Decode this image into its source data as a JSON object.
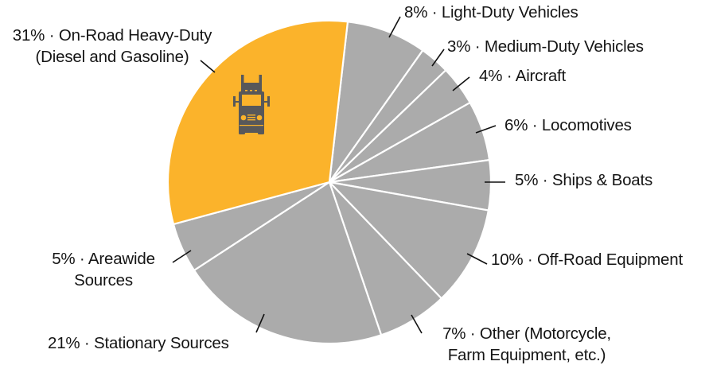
{
  "chart_data": {
    "type": "pie",
    "title": "",
    "start_angle_deg": 6.5,
    "direction": "clockwise",
    "highlight_color": "#FBB32B",
    "default_color": "#ABABAB",
    "separator_color": "#FFFFFF",
    "icon": "truck-icon",
    "icon_color": "#58585A",
    "slices": [
      {
        "label": "Light-Duty Vehicles",
        "value": 8,
        "color": "#ABABAB",
        "display": "8% · Light-Duty Vehicles"
      },
      {
        "label": "Medium-Duty Vehicles",
        "value": 3,
        "color": "#ABABAB",
        "display": "3% · Medium-Duty Vehicles"
      },
      {
        "label": "Aircraft",
        "value": 4,
        "color": "#ABABAB",
        "display": "4% · Aircraft"
      },
      {
        "label": "Locomotives",
        "value": 6,
        "color": "#ABABAB",
        "display": "6% · Locomotives"
      },
      {
        "label": "Ships & Boats",
        "value": 5,
        "color": "#ABABAB",
        "display": "5% · Ships & Boats"
      },
      {
        "label": "Off-Road Equipment",
        "value": 10,
        "color": "#ABABAB",
        "display": "10% · Off-Road Equipment"
      },
      {
        "label": "Other (Motorcycle, Farm Equipment, etc.)",
        "value": 7,
        "color": "#ABABAB",
        "display_lines": [
          "7% · Other (Motorcycle,",
          "Farm Equipment, etc.)"
        ]
      },
      {
        "label": "Stationary Sources",
        "value": 21,
        "color": "#ABABAB",
        "display": "21% · Stationary Sources"
      },
      {
        "label": "Areawide Sources",
        "value": 5,
        "color": "#ABABAB",
        "display_lines": [
          "5% · Areawide",
          "Sources"
        ]
      },
      {
        "label": "On-Road Heavy-Duty (Diesel and Gasoline)",
        "value": 31,
        "color": "#FBB32B",
        "display_lines": [
          "31% · On-Road Heavy-Duty",
          "(Diesel and Gasoline)"
        ]
      }
    ],
    "legend": "none (direct labels with leader lines)"
  }
}
